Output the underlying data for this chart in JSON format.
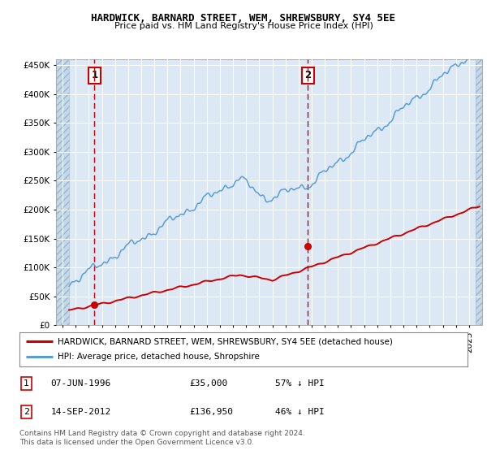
{
  "title": "HARDWICK, BARNARD STREET, WEM, SHREWSBURY, SY4 5EE",
  "subtitle": "Price paid vs. HM Land Registry's House Price Index (HPI)",
  "background_color": "#dce9f5",
  "sale1_date": 1996.44,
  "sale1_price": 35000,
  "sale2_date": 2012.71,
  "sale2_price": 136950,
  "legend_line1": "HARDWICK, BARNARD STREET, WEM, SHREWSBURY, SY4 5EE (detached house)",
  "legend_line2": "HPI: Average price, detached house, Shropshire",
  "footnote": "Contains HM Land Registry data © Crown copyright and database right 2024.\nThis data is licensed under the Open Government Licence v3.0.",
  "xmin": 1993.5,
  "xmax": 2026.0,
  "ymin": 0,
  "ymax": 460000,
  "red_color": "#cc0000",
  "blue_color": "#5b9bd5",
  "hatch_region_left_end": 1994.5,
  "hatch_region_right_start": 2025.5,
  "yticks": [
    0,
    50000,
    100000,
    150000,
    200000,
    250000,
    300000,
    350000,
    400000,
    450000
  ]
}
